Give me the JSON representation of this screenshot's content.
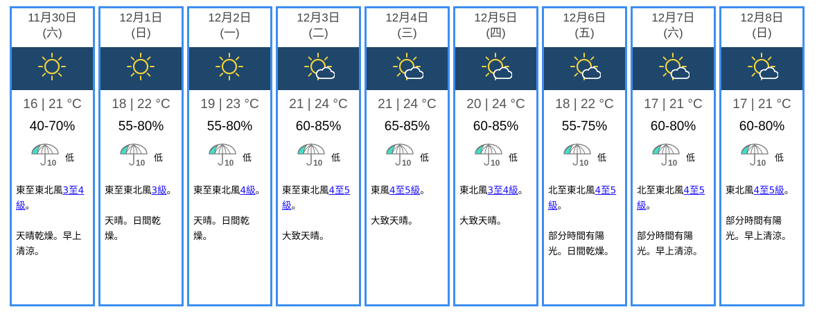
{
  "colors": {
    "border": "#3d8ef0",
    "band": "#1f466b",
    "sun": "#f0d23c",
    "link": "#1a0dff"
  },
  "days": [
    {
      "date": "11月30日",
      "weekday": "(六)",
      "icon": "sunny-icon",
      "low": "16",
      "high": "21",
      "unit": "°C",
      "humidity": "40-70%",
      "psr": "低",
      "wind_prefix": "東至東北風",
      "wind_link": "3至4級",
      "wind_suffix": "。",
      "desc": "天晴乾燥。早上清涼。"
    },
    {
      "date": "12月1日",
      "weekday": "(日)",
      "icon": "sunny-icon",
      "low": "18",
      "high": "22",
      "unit": "°C",
      "humidity": "55-80%",
      "psr": "低",
      "wind_prefix": "東至東北風",
      "wind_link": "3級",
      "wind_suffix": "。",
      "desc": "天晴。日間乾燥。"
    },
    {
      "date": "12月2日",
      "weekday": "(一)",
      "icon": "sunny-icon",
      "low": "19",
      "high": "23",
      "unit": "°C",
      "humidity": "55-80%",
      "psr": "低",
      "wind_prefix": "東至東北風",
      "wind_link": "4級",
      "wind_suffix": "。",
      "desc": "天晴。日間乾燥。"
    },
    {
      "date": "12月3日",
      "weekday": "(二)",
      "icon": "sunny-intervals-icon",
      "low": "21",
      "high": "24",
      "unit": "°C",
      "humidity": "60-85%",
      "psr": "低",
      "wind_prefix": "東至東北風",
      "wind_link": "4至5級",
      "wind_suffix": "。",
      "desc": "大致天晴。"
    },
    {
      "date": "12月4日",
      "weekday": "(三)",
      "icon": "sunny-intervals-icon",
      "low": "21",
      "high": "24",
      "unit": "°C",
      "humidity": "65-85%",
      "psr": "低",
      "wind_prefix": "東風",
      "wind_link": "4至5級",
      "wind_suffix": "。",
      "desc": "大致天晴。"
    },
    {
      "date": "12月5日",
      "weekday": "(四)",
      "icon": "sunny-intervals-icon",
      "low": "20",
      "high": "24",
      "unit": "°C",
      "humidity": "60-85%",
      "psr": "低",
      "wind_prefix": "東北風",
      "wind_link": "3至4級",
      "wind_suffix": "。",
      "desc": "大致天晴。"
    },
    {
      "date": "12月6日",
      "weekday": "(五)",
      "icon": "sunny-intervals-icon",
      "low": "18",
      "high": "22",
      "unit": "°C",
      "humidity": "55-75%",
      "psr": "低",
      "wind_prefix": "北至東北風",
      "wind_link": "4至5級",
      "wind_suffix": "。",
      "desc": "部分時間有陽光。日間乾燥。"
    },
    {
      "date": "12月7日",
      "weekday": "(六)",
      "icon": "sunny-intervals-icon",
      "low": "17",
      "high": "21",
      "unit": "°C",
      "humidity": "60-80%",
      "psr": "低",
      "wind_prefix": "北至東北風",
      "wind_link": "4至5級",
      "wind_suffix": "。",
      "desc": "部分時間有陽光。早上清涼。"
    },
    {
      "date": "12月8日",
      "weekday": "(日)",
      "icon": "sunny-intervals-icon",
      "low": "17",
      "high": "21",
      "unit": "°C",
      "humidity": "60-80%",
      "psr": "低",
      "wind_prefix": "東北風",
      "wind_link": "4至5級",
      "wind_suffix": "。",
      "desc": "部分時間有陽光。早上清涼。"
    }
  ]
}
